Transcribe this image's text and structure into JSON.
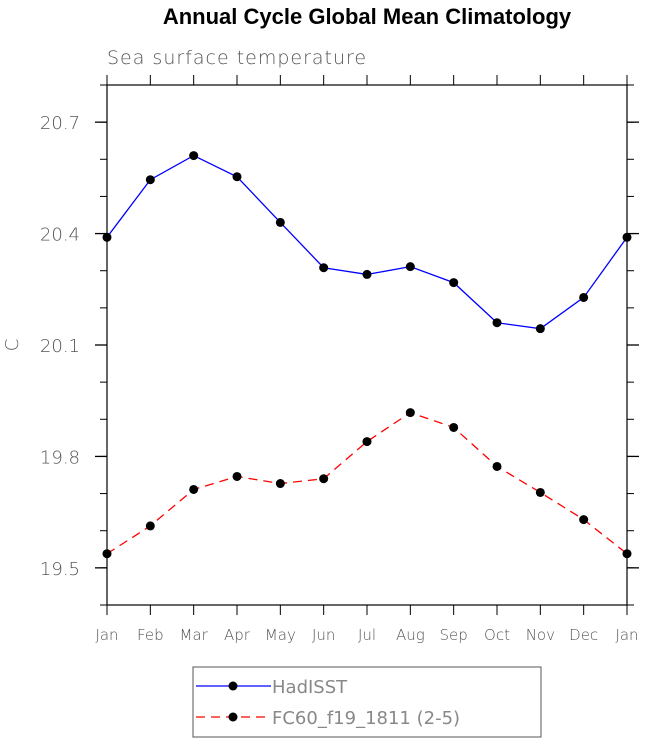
{
  "chart_data": {
    "type": "line",
    "title": "Annual Cycle Global Mean Climatology",
    "subtitle": "Sea surface temperature",
    "xlabel": "",
    "ylabel": "C",
    "categories": [
      "Jan",
      "Feb",
      "Mar",
      "Apr",
      "May",
      "Jun",
      "Jul",
      "Aug",
      "Sep",
      "Oct",
      "Nov",
      "Dec",
      "Jan"
    ],
    "ylim": [
      19.4,
      20.8
    ],
    "yticks": [
      "19.5",
      "19.8",
      "20.1",
      "20.4",
      "20.7"
    ],
    "ytick_values": [
      19.5,
      19.8,
      20.1,
      20.4,
      20.7
    ],
    "yminor_step": 0.1,
    "grid": false,
    "legend_position": "bottom-center",
    "series": [
      {
        "name": "HadISST",
        "color": "#0000ff",
        "dash": "solid",
        "values": [
          20.39,
          20.545,
          20.61,
          20.553,
          20.43,
          20.308,
          20.29,
          20.311,
          20.268,
          20.16,
          20.144,
          20.228,
          20.39
        ]
      },
      {
        "name": "FC60_f19_1811 (2-5)",
        "color": "#ff0000",
        "dash": "dashed",
        "values": [
          19.538,
          19.613,
          19.711,
          19.746,
          19.727,
          19.74,
          19.84,
          19.918,
          19.878,
          19.773,
          19.703,
          19.63,
          19.538
        ]
      }
    ]
  }
}
